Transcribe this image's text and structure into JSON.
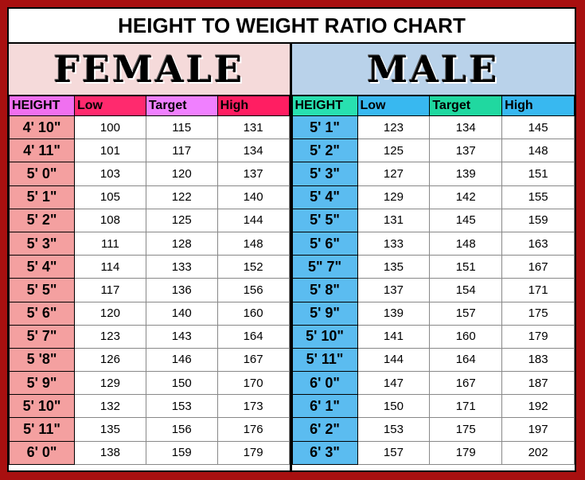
{
  "title": "HEIGHT TO WEIGHT RATIO CHART",
  "colors": {
    "background": "#a81010",
    "female_height": "#f4a0a0",
    "male_height": "#5bbcf0"
  },
  "chart_data": {
    "type": "table",
    "title": "HEIGHT TO WEIGHT RATIO CHART",
    "tables": [
      {
        "name": "FEMALE",
        "columns": [
          "HEIGHT",
          "Low",
          "Target",
          "High"
        ],
        "rows": [
          [
            "4' 10\"",
            "100",
            "115",
            "131"
          ],
          [
            "4' 11\"",
            "101",
            "117",
            "134"
          ],
          [
            "5' 0\"",
            "103",
            "120",
            "137"
          ],
          [
            "5' 1\"",
            "105",
            "122",
            "140"
          ],
          [
            "5' 2\"",
            "108",
            "125",
            "144"
          ],
          [
            "5' 3\"",
            "111",
            "128",
            "148"
          ],
          [
            "5' 4\"",
            "114",
            "133",
            "152"
          ],
          [
            "5' 5\"",
            "117",
            "136",
            "156"
          ],
          [
            "5' 6\"",
            "120",
            "140",
            "160"
          ],
          [
            "5' 7\"",
            "123",
            "143",
            "164"
          ],
          [
            "5 '8\"",
            "126",
            "146",
            "167"
          ],
          [
            "5' 9\"",
            "129",
            "150",
            "170"
          ],
          [
            "5' 10\"",
            "132",
            "153",
            "173"
          ],
          [
            "5' 11\"",
            "135",
            "156",
            "176"
          ],
          [
            "6' 0\"",
            "138",
            "159",
            "179"
          ]
        ]
      },
      {
        "name": "MALE",
        "columns": [
          "HEIGHT",
          "Low",
          "Target",
          "High"
        ],
        "rows": [
          [
            "5' 1\"",
            "123",
            "134",
            "145"
          ],
          [
            "5' 2\"",
            "125",
            "137",
            "148"
          ],
          [
            "5' 3\"",
            "127",
            "139",
            "151"
          ],
          [
            "5' 4\"",
            "129",
            "142",
            "155"
          ],
          [
            "5' 5\"",
            "131",
            "145",
            "159"
          ],
          [
            "5' 6\"",
            "133",
            "148",
            "163"
          ],
          [
            "5\" 7\"",
            "135",
            "151",
            "167"
          ],
          [
            "5' 8\"",
            "137",
            "154",
            "171"
          ],
          [
            "5' 9\"",
            "139",
            "157",
            "175"
          ],
          [
            "5' 10\"",
            "141",
            "160",
            "179"
          ],
          [
            "5' 11\"",
            "144",
            "164",
            "183"
          ],
          [
            "6' 0\"",
            "147",
            "167",
            "187"
          ],
          [
            "6' 1\"",
            "150",
            "171",
            "192"
          ],
          [
            "6' 2\"",
            "153",
            "175",
            "197"
          ],
          [
            "6' 3\"",
            "157",
            "179",
            "202"
          ]
        ]
      }
    ]
  }
}
